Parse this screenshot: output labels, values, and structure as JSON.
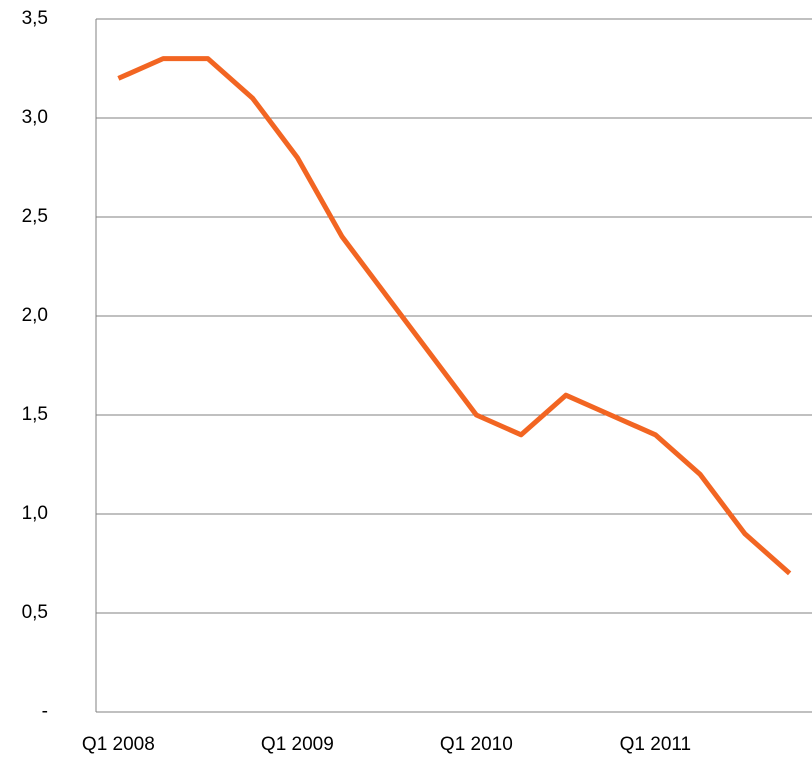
{
  "chart_data": {
    "type": "line",
    "categories": [
      "Q1 2008",
      null,
      null,
      null,
      "Q1 2009",
      null,
      null,
      null,
      "Q1 2010",
      null,
      null,
      null,
      "Q1 2011",
      null,
      null,
      null
    ],
    "values": [
      3.2,
      3.3,
      3.3,
      3.1,
      2.8,
      2.4,
      2.1,
      1.8,
      1.5,
      1.4,
      1.6,
      1.5,
      1.4,
      1.2,
      0.9,
      0.7
    ],
    "color": "#f26522",
    "ylim": [
      0,
      3.5
    ],
    "yticks": [
      {
        "value": 0,
        "label": "-"
      },
      {
        "value": 0.5,
        "label": "0,5"
      },
      {
        "value": 1,
        "label": "1,0"
      },
      {
        "value": 1.5,
        "label": "1,5"
      },
      {
        "value": 2,
        "label": "2,0"
      },
      {
        "value": 2.5,
        "label": "2,5"
      },
      {
        "value": 3,
        "label": "3,0"
      },
      {
        "value": 3.5,
        "label": "3,5"
      }
    ],
    "grid": true
  }
}
